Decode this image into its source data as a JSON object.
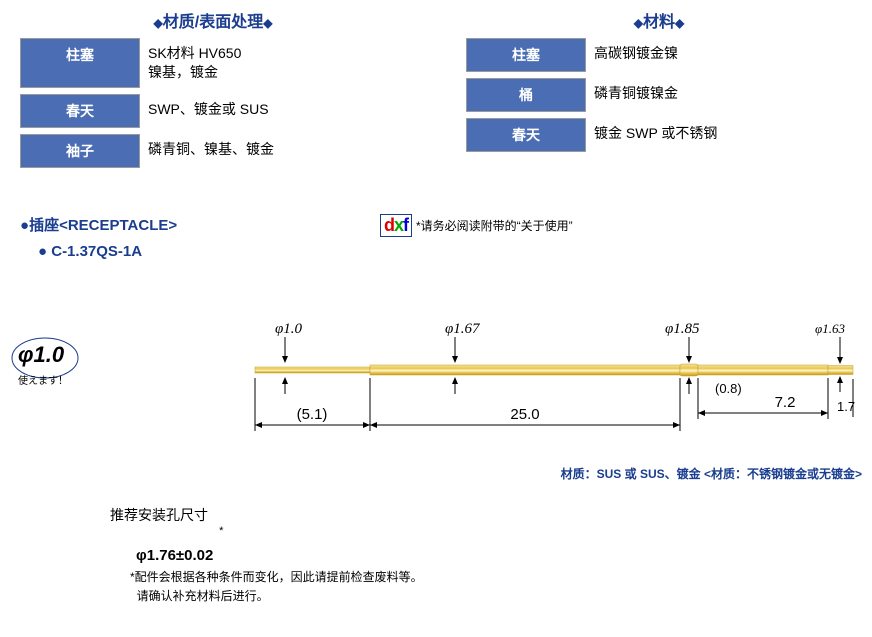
{
  "left_table": {
    "heading": "材质/表面处理",
    "rows": [
      {
        "label": "柱塞",
        "value": "SK材料 HV650\n镍基，镀金"
      },
      {
        "label": "春天",
        "value": "SWP、镀金或 SUS"
      },
      {
        "label": "袖子",
        "value": "磷青铜、镍基、镀金"
      }
    ]
  },
  "right_table": {
    "heading": "材料",
    "rows": [
      {
        "label": "柱塞",
        "value": "高碳钢镀金镍"
      },
      {
        "label": "桶",
        "value": "磷青铜镀镍金"
      },
      {
        "label": "春天",
        "value": "镀金 SWP 或不锈钢"
      }
    ]
  },
  "receptacle": {
    "title": "插座<RECEPTACLE>",
    "model": "C-1.37QS-1A",
    "dxf_note": "*请务必阅读附带的“关于使用”"
  },
  "phi10_text": {
    "main": "φ1.0",
    "sub": "使えます！"
  },
  "drawing": {
    "tip_length": "(5.1)",
    "body_length": "25.0",
    "tail_a": "(0.8)",
    "tail_b": "7.2",
    "end_h": "1.7",
    "dia_tip": "φ1.0",
    "dia_body": "φ1.67",
    "dia_bulge": "φ1.85",
    "dia_end": "φ1.63",
    "body_color": "#e8c752",
    "body_shade": "#c89a20",
    "line_color": "#000000"
  },
  "material_note": "材质：SUS 或 SUS、镀金 <材质：不锈钢镀金或无镀金>",
  "rec_hole": {
    "title": "推荐安装孔尺寸",
    "value": "φ1.76±0.02",
    "star": "*"
  },
  "footnotes": [
    "*配件会根据各种条件而变化，因此请提前检查废料等。",
    "  请确认补充材料后进行。"
  ],
  "colors": {
    "brand": "#1a3d8f",
    "label_bg": "#4a6db3"
  }
}
